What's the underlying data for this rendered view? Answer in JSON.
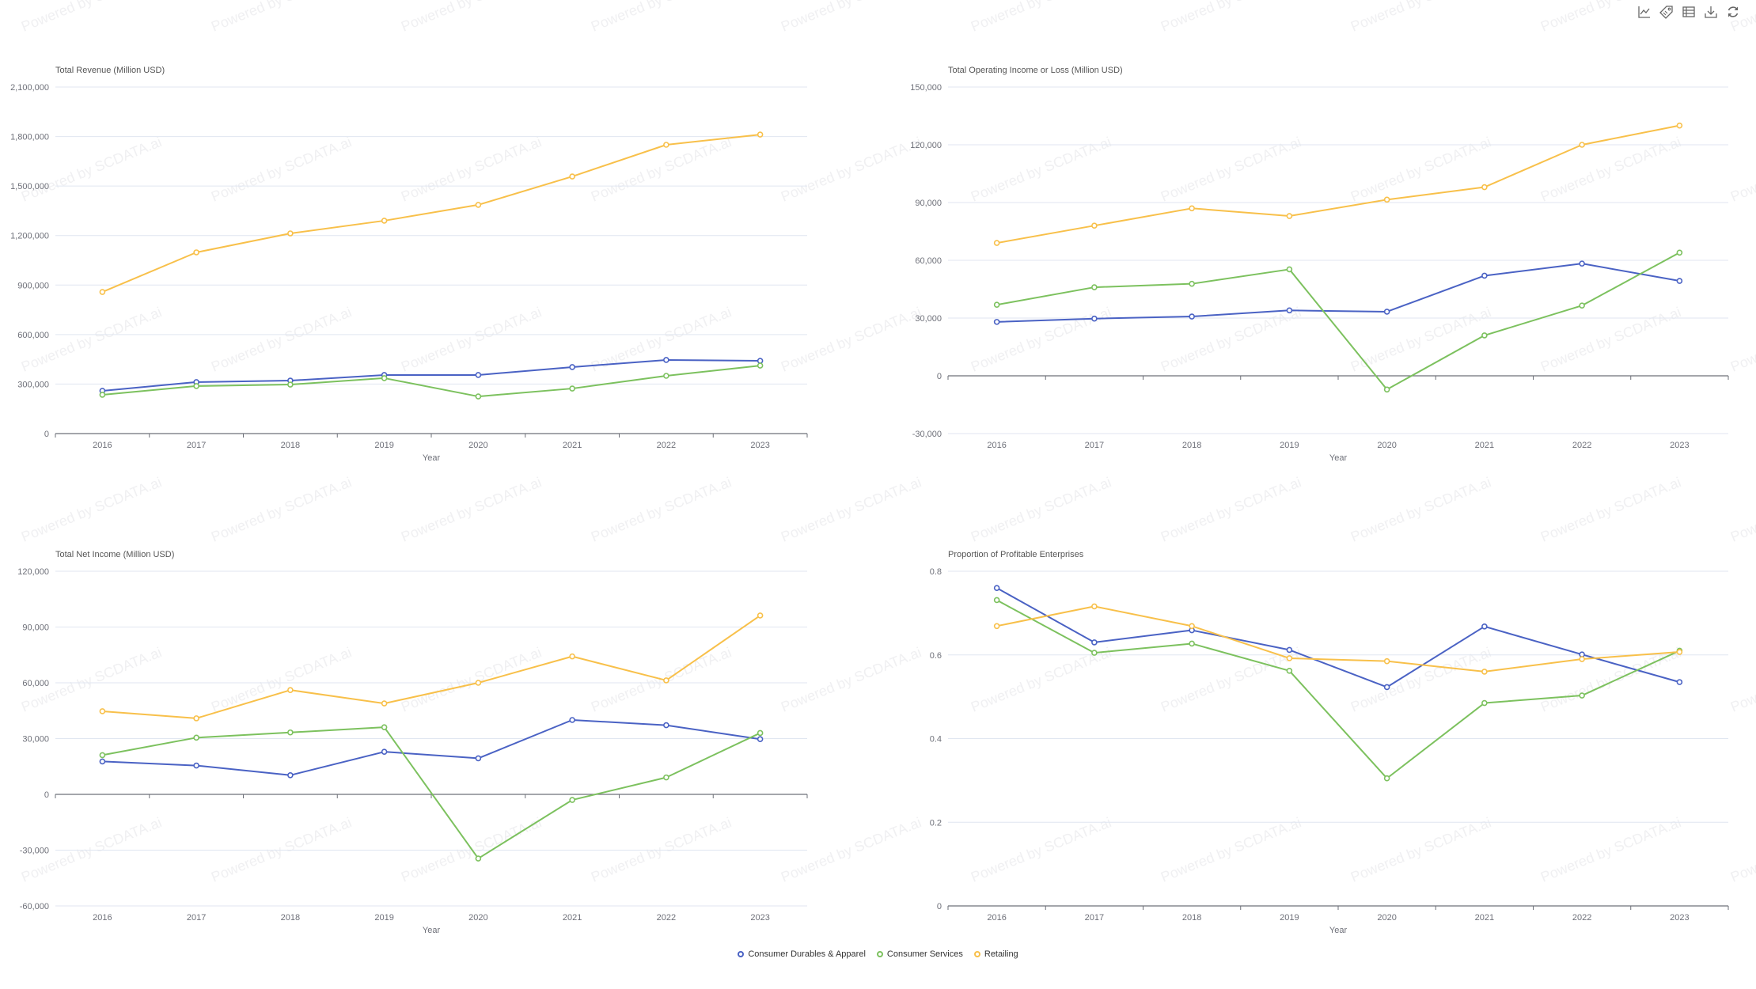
{
  "toolbar": {
    "items": [
      {
        "name": "line-chart-icon",
        "label": "Switch to line chart"
      },
      {
        "name": "tag-icon",
        "label": "Toggle labels"
      },
      {
        "name": "data-view-icon",
        "label": "Data view"
      },
      {
        "name": "download-icon",
        "label": "Save as image"
      },
      {
        "name": "refresh-icon",
        "label": "Restore"
      }
    ]
  },
  "watermark": "Powered by SCDATA.ai",
  "legend": [
    {
      "label": "Consumer Durables & Apparel",
      "color": "#4a62c4"
    },
    {
      "label": "Consumer Services",
      "color": "#7cc15e"
    },
    {
      "label": "Retailing",
      "color": "#f8c04a"
    }
  ],
  "chart_data": [
    {
      "type": "line",
      "title": "Total Revenue (Million USD)",
      "xlabel": "Year",
      "ylabel": "Total Revenue (Million USD)",
      "categories": [
        "2016",
        "2017",
        "2018",
        "2019",
        "2020",
        "2021",
        "2022",
        "2023"
      ],
      "ylim": [
        0,
        2100000
      ],
      "yticks": [
        0,
        300000,
        600000,
        900000,
        1200000,
        1500000,
        1800000,
        2100000
      ],
      "ytick_labels": [
        "0",
        "300,000",
        "600,000",
        "900,000",
        "1,200,000",
        "1,500,000",
        "1,800,000",
        "2,100,000"
      ],
      "grid": true,
      "series": [
        {
          "name": "Consumer Durables & Apparel",
          "color": "#4a62c4",
          "values": [
            259000,
            312000,
            321000,
            355000,
            355000,
            403000,
            446000,
            441000
          ]
        },
        {
          "name": "Consumer Services",
          "color": "#7cc15e",
          "values": [
            235000,
            288000,
            297000,
            336000,
            225000,
            273000,
            350000,
            412000
          ]
        },
        {
          "name": "Retailing",
          "color": "#f8c04a",
          "values": [
            858000,
            1098000,
            1213000,
            1290000,
            1386000,
            1558000,
            1750000,
            1812000
          ]
        }
      ]
    },
    {
      "type": "line",
      "title": "Total Operating Income or Loss (Million USD)",
      "xlabel": "Year",
      "ylabel": "Total Operating Income or Loss (Million USD)",
      "categories": [
        "2016",
        "2017",
        "2018",
        "2019",
        "2020",
        "2021",
        "2022",
        "2023"
      ],
      "ylim": [
        -30000,
        150000
      ],
      "yticks": [
        -30000,
        0,
        30000,
        60000,
        90000,
        120000,
        150000
      ],
      "ytick_labels": [
        "-30,000",
        "0",
        "30,000",
        "60,000",
        "90,000",
        "120,000",
        "150,000"
      ],
      "grid": true,
      "series": [
        {
          "name": "Consumer Durables & Apparel",
          "color": "#4a62c4",
          "values": [
            28000,
            29700,
            30800,
            34000,
            33300,
            52000,
            58300,
            49300
          ]
        },
        {
          "name": "Consumer Services",
          "color": "#7cc15e",
          "values": [
            36900,
            46000,
            47800,
            55300,
            -7100,
            21000,
            36500,
            64000
          ]
        },
        {
          "name": "Retailing",
          "color": "#f8c04a",
          "values": [
            69000,
            78000,
            87000,
            83000,
            91500,
            98000,
            120000,
            130000
          ]
        }
      ]
    },
    {
      "type": "line",
      "title": "Total Net Income (Million USD)",
      "xlabel": "Year",
      "ylabel": "Total Net Income (Million USD)",
      "categories": [
        "2016",
        "2017",
        "2018",
        "2019",
        "2020",
        "2021",
        "2022",
        "2023"
      ],
      "ylim": [
        -60000,
        120000
      ],
      "yticks": [
        -60000,
        -30000,
        0,
        30000,
        60000,
        90000,
        120000
      ],
      "ytick_labels": [
        "-60,000",
        "-30,000",
        "0",
        "30,000",
        "60,000",
        "90,000",
        "120,000"
      ],
      "grid": true,
      "series": [
        {
          "name": "Consumer Durables & Apparel",
          "color": "#4a62c4",
          "values": [
            17700,
            15500,
            10300,
            22900,
            19400,
            40000,
            37200,
            29700
          ]
        },
        {
          "name": "Consumer Services",
          "color": "#7cc15e",
          "values": [
            21100,
            30500,
            33300,
            36100,
            -34500,
            -3000,
            9100,
            33000
          ]
        },
        {
          "name": "Retailing",
          "color": "#f8c04a",
          "values": [
            44700,
            40900,
            56100,
            48900,
            60000,
            74200,
            61300,
            96200
          ]
        }
      ]
    },
    {
      "type": "line",
      "title": "Proportion of Profitable Enterprises",
      "xlabel": "Year",
      "ylabel": "Proportion of Profitable Enterprises",
      "categories": [
        "2016",
        "2017",
        "2018",
        "2019",
        "2020",
        "2021",
        "2022",
        "2023"
      ],
      "ylim": [
        0,
        0.8
      ],
      "yticks": [
        0,
        0.2,
        0.4,
        0.6,
        0.8
      ],
      "ytick_labels": [
        "0",
        "0.2",
        "0.4",
        "0.6",
        "0.8"
      ],
      "grid": true,
      "series": [
        {
          "name": "Consumer Durables & Apparel",
          "color": "#4a62c4",
          "values": [
            0.76,
            0.63,
            0.659,
            0.612,
            0.523,
            0.668,
            0.601,
            0.535
          ]
        },
        {
          "name": "Consumer Services",
          "color": "#7cc15e",
          "values": [
            0.731,
            0.605,
            0.627,
            0.562,
            0.305,
            0.485,
            0.503,
            0.61
          ]
        },
        {
          "name": "Retailing",
          "color": "#f8c04a",
          "values": [
            0.669,
            0.716,
            0.669,
            0.592,
            0.585,
            0.56,
            0.59,
            0.607
          ]
        }
      ]
    }
  ]
}
